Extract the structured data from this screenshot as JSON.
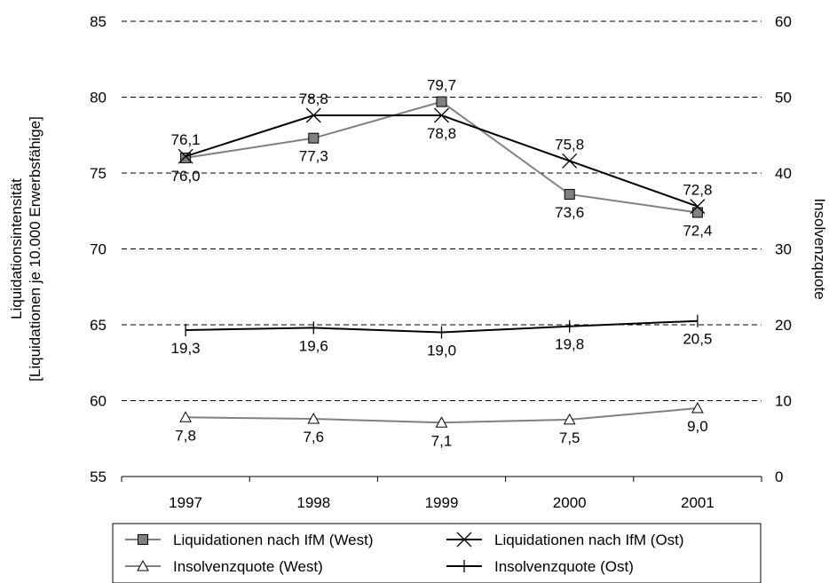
{
  "chart_data": {
    "type": "line",
    "categories": [
      "1997",
      "1998",
      "1999",
      "2000",
      "2001"
    ],
    "ylabel_left": [
      "Liquidationsintensität",
      "[Liquidationen je 10.000 Erwerbsfähige]"
    ],
    "ylabel_right": "Insolvenzquote",
    "ylim_left": [
      55,
      85
    ],
    "yticks_left": [
      "55",
      "60",
      "65",
      "70",
      "75",
      "80",
      "85"
    ],
    "ylim_right": [
      0,
      60
    ],
    "yticks_right": [
      "0",
      "10",
      "20",
      "30",
      "40",
      "50",
      "60"
    ],
    "grid": "horizontal dashed",
    "legend_position": "bottom",
    "series": [
      {
        "name": "Liquidationen nach IfM (West)",
        "axis": "left",
        "marker": "square",
        "color": "#808080",
        "values": [
          76.0,
          77.3,
          79.7,
          73.6,
          72.4
        ],
        "labels": [
          "76,0",
          "77,3",
          "79,7",
          "73,6",
          "72,4"
        ],
        "label_pos": [
          "below",
          "below",
          "above",
          "below",
          "below"
        ]
      },
      {
        "name": "Liquidationen nach IfM (Ost)",
        "axis": "left",
        "marker": "x",
        "color": "#000000",
        "values": [
          76.1,
          78.8,
          78.8,
          75.8,
          72.8
        ],
        "labels": [
          "76,1",
          "78,8",
          "78,8",
          "75,8",
          "72,8"
        ],
        "label_pos": [
          "above",
          "above",
          "below",
          "above",
          "above"
        ]
      },
      {
        "name": "Insolvenzquote (West)",
        "axis": "right",
        "marker": "triangle",
        "color": "#808080",
        "values": [
          7.8,
          7.6,
          7.1,
          7.5,
          9.0
        ],
        "labels": [
          "7,8",
          "7,6",
          "7,1",
          "7,5",
          "9,0"
        ],
        "label_pos": [
          "below",
          "below",
          "below",
          "below",
          "below"
        ]
      },
      {
        "name": "Insolvenzquote (Ost)",
        "axis": "right",
        "marker": "plus",
        "color": "#000000",
        "values": [
          19.3,
          19.6,
          19.0,
          19.8,
          20.5
        ],
        "labels": [
          "19,3",
          "19,6",
          "19,0",
          "19,8",
          "20,5"
        ],
        "label_pos": [
          "below",
          "below",
          "below",
          "below",
          "below"
        ]
      }
    ]
  }
}
